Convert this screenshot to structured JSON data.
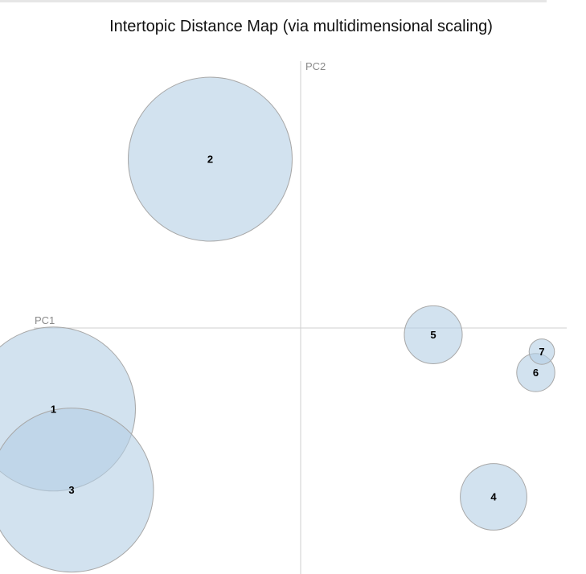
{
  "chart_data": {
    "type": "scatter",
    "title": "Intertopic Distance Map (via multidimensional scaling)",
    "xlabel": "PC1",
    "ylabel": "PC2",
    "xlim": [
      -0.45,
      0.45
    ],
    "ylim": [
      -0.42,
      0.45
    ],
    "grid": false,
    "legend": "none",
    "colors": {
      "bubble_fill": "#b4cfe4",
      "bubble_stroke": "#a8a8a8",
      "axis": "#cfcfcf"
    },
    "points": [
      {
        "label": "1",
        "x": -0.41,
        "y": -0.12,
        "size": 100
      },
      {
        "label": "2",
        "x": -0.15,
        "y": 0.25,
        "size": 100
      },
      {
        "label": "3",
        "x": -0.38,
        "y": -0.24,
        "size": 100
      },
      {
        "label": "4",
        "x": 0.32,
        "y": -0.25,
        "size": 16.5
      },
      {
        "label": "5",
        "x": 0.22,
        "y": -0.01,
        "size": 12.5
      },
      {
        "label": "6",
        "x": 0.39,
        "y": -0.066,
        "size": 5.4
      },
      {
        "label": "7",
        "x": 0.4,
        "y": -0.035,
        "size": 2.4
      }
    ]
  }
}
